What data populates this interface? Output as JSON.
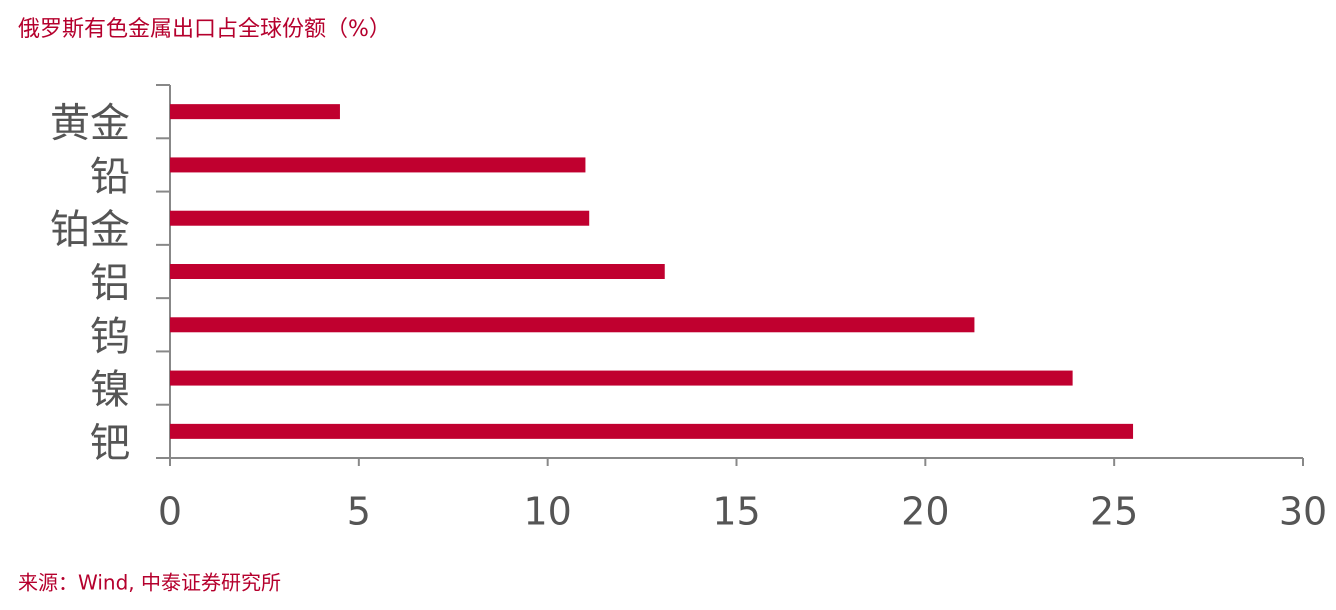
{
  "chart_data": {
    "type": "bar",
    "orientation": "horizontal",
    "title": "俄罗斯有色金属出口占全球份额（%）",
    "source": "来源：Wind, 中泰证券研究所",
    "categories": [
      "黄金",
      "铅",
      "铂金",
      "铝",
      "钨",
      "镍",
      "钯"
    ],
    "values": [
      4.5,
      11.0,
      11.1,
      13.1,
      21.3,
      23.9,
      25.5
    ],
    "color": "#c0002f",
    "xlim": [
      0,
      30
    ],
    "xticks": [
      0,
      5,
      10,
      15,
      20,
      25,
      30
    ],
    "grid": false
  }
}
